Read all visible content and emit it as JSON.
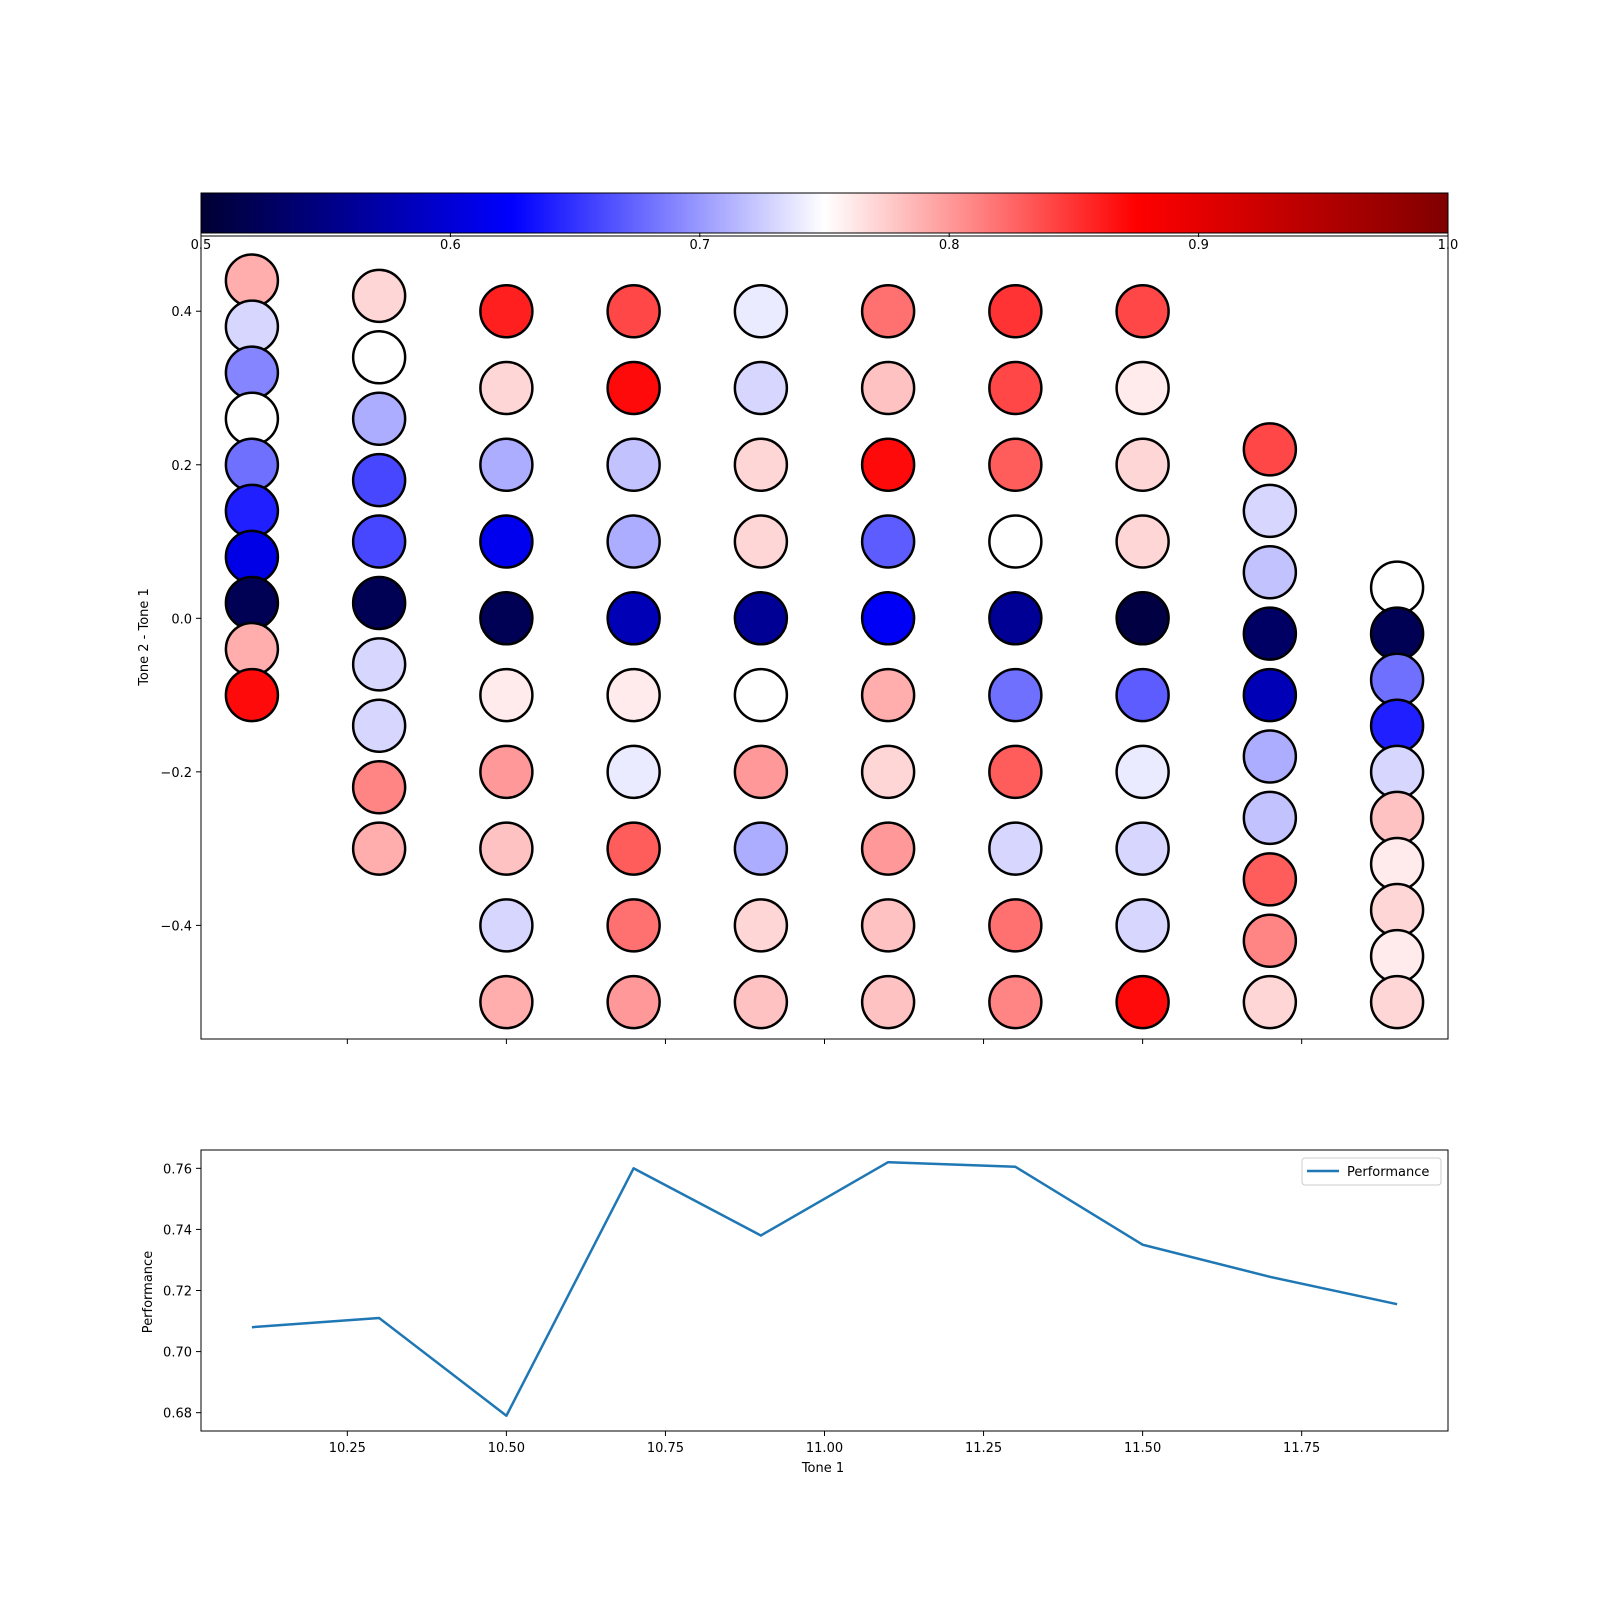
{
  "colors": {
    "cmap": [
      "#000033",
      "#0000ff",
      "#ffffff",
      "#ff0000",
      "#800000"
    ],
    "line": "#1f77b4",
    "circle_edge": "#000000"
  },
  "chart_data": [
    {
      "type": "scatter",
      "color_scale": "bwr-seismic",
      "colorbar": {
        "range": [
          0.5,
          1.0
        ],
        "ticks": [
          "0.5",
          "0.6",
          "0.7",
          "0.8",
          "0.9",
          "1.0"
        ],
        "placement": "top"
      },
      "xlabel": "",
      "ylabel": "Tone 2 - Tone 1",
      "xlim": [
        10.02,
        11.98
      ],
      "ylim": [
        -0.548,
        0.498
      ],
      "yticks": [
        "0.4",
        "0.2",
        "0.0",
        "−0.2",
        "−0.4"
      ],
      "ytick_values": [
        0.4,
        0.2,
        0.0,
        -0.2,
        -0.4
      ],
      "xtick_values": [
        10.25,
        10.5,
        10.75,
        11.0,
        11.25,
        11.5,
        11.75
      ],
      "columns": [
        {
          "x": 10.1,
          "y": [
            0.44,
            0.38,
            0.32,
            0.26,
            0.2,
            0.14,
            0.08,
            0.02,
            -0.04,
            -0.1
          ],
          "c": [
            0.79,
            0.73,
            0.69,
            0.75,
            0.68,
            0.64,
            0.61,
            0.52,
            0.79,
            0.87
          ]
        },
        {
          "x": 10.3,
          "y": [
            0.42,
            0.34,
            0.26,
            0.18,
            0.1,
            0.02,
            -0.06,
            -0.14,
            -0.22,
            -0.3
          ],
          "c": [
            0.77,
            0.75,
            0.71,
            0.66,
            0.66,
            0.52,
            0.73,
            0.73,
            0.81,
            0.79
          ]
        },
        {
          "x": 10.5,
          "y": [
            0.4,
            0.3,
            0.2,
            0.1,
            0.0,
            -0.1,
            -0.2,
            -0.3,
            -0.4,
            -0.5
          ],
          "c": [
            0.86,
            0.77,
            0.71,
            0.615,
            0.52,
            0.76,
            0.8,
            0.78,
            0.73,
            0.79
          ]
        },
        {
          "x": 10.7,
          "y": [
            0.4,
            0.3,
            0.2,
            0.1,
            0.0,
            -0.1,
            -0.2,
            -0.3,
            -0.4,
            -0.5
          ],
          "c": [
            0.84,
            0.87,
            0.72,
            0.71,
            0.58,
            0.76,
            0.74,
            0.83,
            0.82,
            0.8
          ]
        },
        {
          "x": 10.9,
          "y": [
            0.4,
            0.3,
            0.2,
            0.1,
            0.0,
            -0.1,
            -0.2,
            -0.3,
            -0.4,
            -0.5
          ],
          "c": [
            0.74,
            0.73,
            0.77,
            0.77,
            0.56,
            0.75,
            0.8,
            0.71,
            0.77,
            0.78
          ]
        },
        {
          "x": 11.1,
          "y": [
            0.4,
            0.3,
            0.2,
            0.1,
            0.0,
            -0.1,
            -0.2,
            -0.3,
            -0.4,
            -0.5
          ],
          "c": [
            0.82,
            0.78,
            0.87,
            0.67,
            0.62,
            0.79,
            0.77,
            0.8,
            0.78,
            0.78
          ]
        },
        {
          "x": 11.3,
          "y": [
            0.4,
            0.3,
            0.2,
            0.1,
            0.0,
            -0.1,
            -0.2,
            -0.3,
            -0.4,
            -0.5
          ],
          "c": [
            0.85,
            0.84,
            0.83,
            0.75,
            0.56,
            0.68,
            0.83,
            0.73,
            0.82,
            0.81
          ]
        },
        {
          "x": 11.5,
          "y": [
            0.4,
            0.3,
            0.2,
            0.1,
            0.0,
            -0.1,
            -0.2,
            -0.3,
            -0.4,
            -0.5
          ],
          "c": [
            0.84,
            0.76,
            0.77,
            0.77,
            0.51,
            0.67,
            0.74,
            0.73,
            0.73,
            0.87
          ]
        },
        {
          "x": 11.7,
          "y": [
            0.22,
            0.14,
            0.06,
            -0.02,
            -0.1,
            -0.18,
            -0.26,
            -0.34,
            -0.42,
            -0.5
          ],
          "c": [
            0.84,
            0.73,
            0.72,
            0.53,
            0.58,
            0.71,
            0.72,
            0.83,
            0.81,
            0.77
          ]
        },
        {
          "x": 11.9,
          "y": [
            0.04,
            -0.02,
            -0.08,
            -0.14,
            -0.2,
            -0.26,
            -0.32,
            -0.38,
            -0.44,
            -0.5
          ],
          "c": [
            0.75,
            0.52,
            0.68,
            0.64,
            0.73,
            0.78,
            0.76,
            0.77,
            0.76,
            0.77
          ]
        }
      ]
    },
    {
      "type": "line",
      "xlabel": "Tone 1",
      "ylabel": "Performance",
      "xlim": [
        10.02,
        11.98
      ],
      "ylim": [
        0.674,
        0.766
      ],
      "xticks": [
        "10.25",
        "10.50",
        "10.75",
        "11.00",
        "11.25",
        "11.50",
        "11.75"
      ],
      "xtick_values": [
        10.25,
        10.5,
        10.75,
        11.0,
        11.25,
        11.5,
        11.75
      ],
      "yticks": [
        "0.76",
        "0.74",
        "0.72",
        "0.70",
        "0.68"
      ],
      "ytick_values": [
        0.76,
        0.74,
        0.72,
        0.7,
        0.68
      ],
      "legend_placement": "top-right",
      "series": [
        {
          "name": "Performance",
          "x": [
            10.1,
            10.3,
            10.5,
            10.7,
            10.9,
            11.1,
            11.3,
            11.5,
            11.7,
            11.9
          ],
          "values": [
            0.708,
            0.711,
            0.679,
            0.76,
            0.738,
            0.762,
            0.7605,
            0.735,
            0.7245,
            0.7155
          ]
        }
      ]
    }
  ]
}
